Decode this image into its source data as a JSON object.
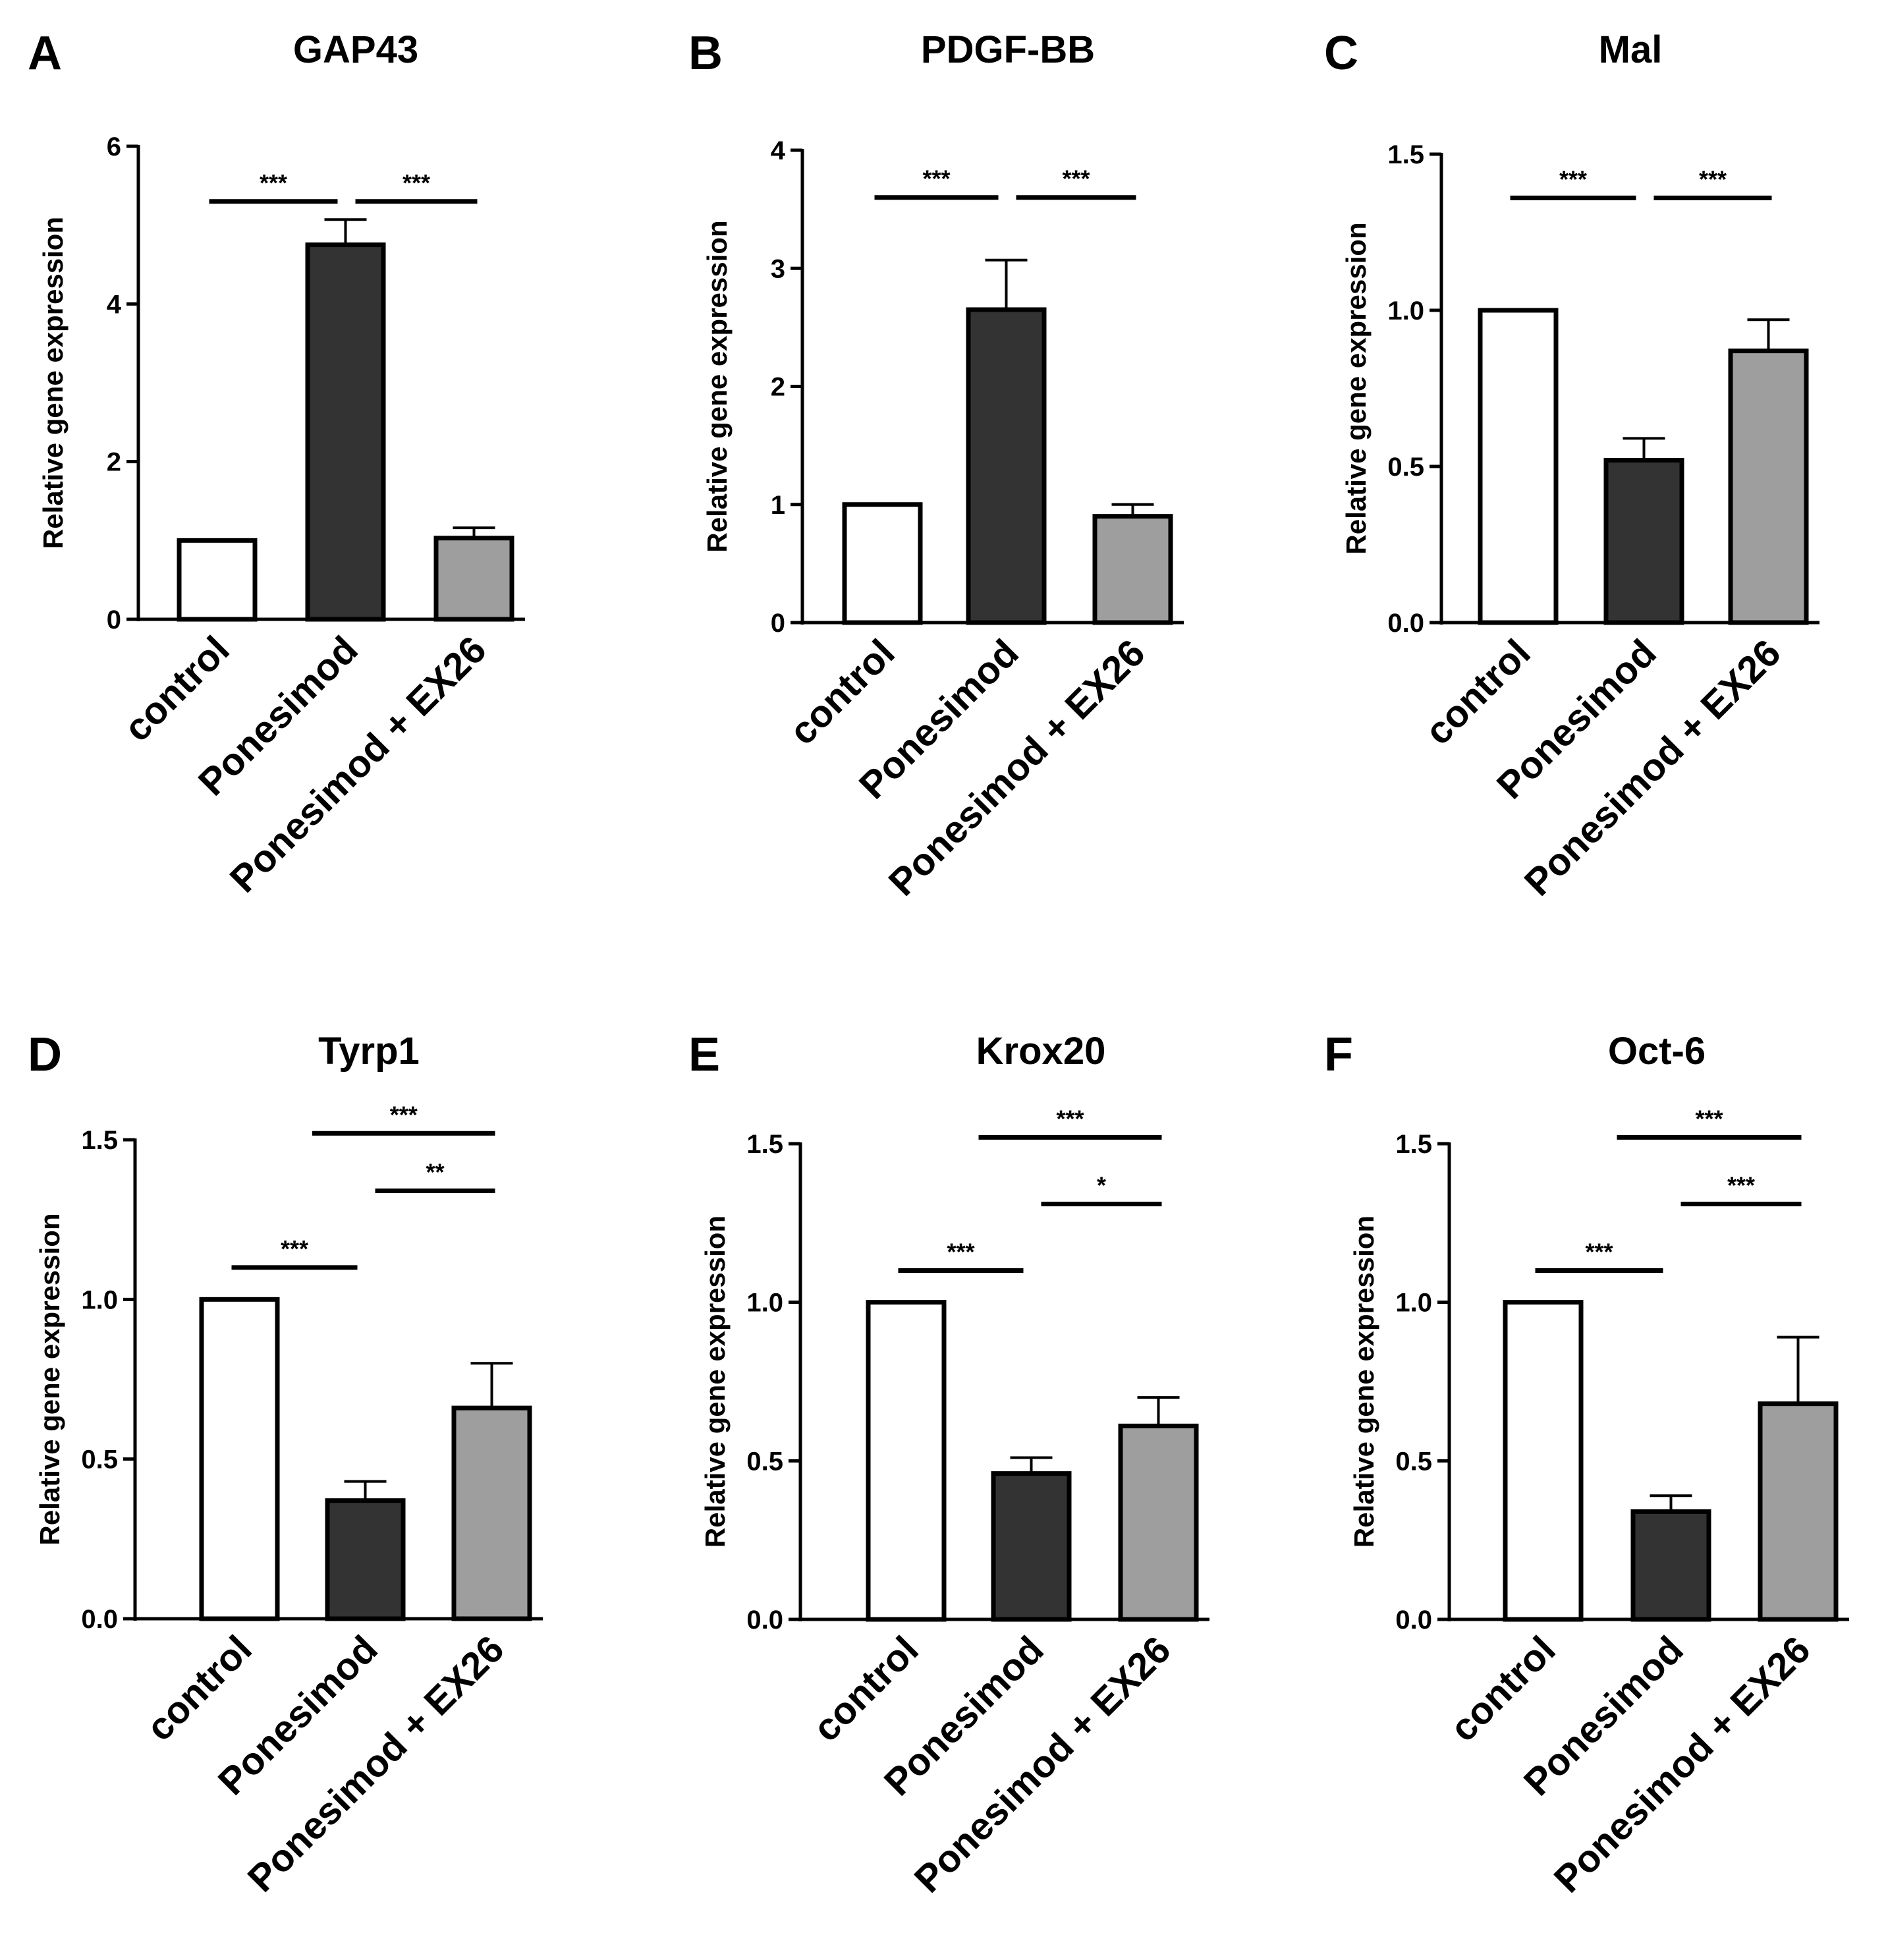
{
  "figure": {
    "ylabel": "Relative gene expression",
    "categories": [
      "control",
      "Ponesimod",
      "Ponesimod + EX26"
    ],
    "colors": {
      "bar_fills": [
        "#ffffff",
        "#333333",
        "#9e9e9e"
      ],
      "stroke": "#000000"
    }
  },
  "chart_data": [
    {
      "type": "bar",
      "panel": "A",
      "title": "GAP43",
      "categories": [
        "control",
        "Ponesimod",
        "Ponesimod + EX26"
      ],
      "values": [
        1.0,
        4.75,
        1.03
      ],
      "errors": [
        0.0,
        0.32,
        0.13
      ],
      "ylim": [
        0,
        6
      ],
      "yticks": [
        "0",
        "2",
        "4",
        "6"
      ],
      "ytick_values": [
        0,
        2,
        4,
        6
      ],
      "xlabel": "",
      "ylabel": "Relative gene expression",
      "significance": [
        {
          "from": 0,
          "to": 1,
          "label": "***",
          "level": 5.3
        },
        {
          "from": 1,
          "to": 2,
          "label": "***",
          "level": 5.3
        }
      ]
    },
    {
      "type": "bar",
      "panel": "B",
      "title": "PDGF-BB",
      "categories": [
        "control",
        "Ponesimod",
        "Ponesimod + EX26"
      ],
      "values": [
        1.0,
        2.65,
        0.9
      ],
      "errors": [
        0.0,
        0.42,
        0.1
      ],
      "ylim": [
        0,
        4
      ],
      "yticks": [
        "0",
        "1",
        "2",
        "3",
        "4"
      ],
      "ytick_values": [
        0,
        1,
        2,
        3,
        4
      ],
      "xlabel": "",
      "ylabel": "Relative gene expression",
      "significance": [
        {
          "from": 0,
          "to": 1,
          "label": "***",
          "level": 3.6
        },
        {
          "from": 1,
          "to": 2,
          "label": "***",
          "level": 3.6
        }
      ]
    },
    {
      "type": "bar",
      "panel": "C",
      "title": "Mal",
      "categories": [
        "control",
        "Ponesimod",
        "Ponesimod + EX26"
      ],
      "values": [
        1.0,
        0.52,
        0.87
      ],
      "errors": [
        0.0,
        0.07,
        0.1
      ],
      "ylim": [
        0,
        1.5
      ],
      "yticks": [
        "0.0",
        "0.5",
        "1.0",
        "1.5"
      ],
      "ytick_values": [
        0,
        0.5,
        1.0,
        1.5
      ],
      "xlabel": "",
      "ylabel": "Relative gene expression",
      "significance": [
        {
          "from": 0,
          "to": 1,
          "label": "***",
          "level": 1.36
        },
        {
          "from": 1,
          "to": 2,
          "label": "***",
          "level": 1.36
        }
      ]
    },
    {
      "type": "bar",
      "panel": "D",
      "title": "Tyrp1",
      "categories": [
        "control",
        "Ponesimod",
        "Ponesimod + EX26"
      ],
      "values": [
        1.0,
        0.37,
        0.66
      ],
      "errors": [
        0.0,
        0.06,
        0.14
      ],
      "ylim": [
        0,
        1.5
      ],
      "yticks": [
        "0.0",
        "0.5",
        "1.0",
        "1.5"
      ],
      "ytick_values": [
        0,
        0.5,
        1.0,
        1.5
      ],
      "xlabel": "",
      "ylabel": "Relative gene expression",
      "significance": [
        {
          "from": 0,
          "to": 1,
          "label": "***",
          "level": 1.1
        },
        {
          "from": 1,
          "to": 2,
          "label": "**",
          "level": 1.34
        },
        {
          "from": 0.5,
          "to": 2,
          "label": "***",
          "level": 1.52
        }
      ]
    },
    {
      "type": "bar",
      "panel": "E",
      "title": "Krox20",
      "categories": [
        "control",
        "Ponesimod",
        "Ponesimod + EX26"
      ],
      "values": [
        1.0,
        0.46,
        0.61
      ],
      "errors": [
        0.0,
        0.05,
        0.09
      ],
      "ylim": [
        0,
        1.5
      ],
      "yticks": [
        "0.0",
        "0.5",
        "1.0",
        "1.5"
      ],
      "ytick_values": [
        0,
        0.5,
        1.0,
        1.5
      ],
      "xlabel": "",
      "ylabel": "Relative gene expression",
      "significance": [
        {
          "from": 0,
          "to": 1,
          "label": "***",
          "level": 1.1
        },
        {
          "from": 1,
          "to": 2,
          "label": "*",
          "level": 1.31
        },
        {
          "from": 0.5,
          "to": 2,
          "label": "***",
          "level": 1.52
        }
      ]
    },
    {
      "type": "bar",
      "panel": "F",
      "title": "Oct-6",
      "categories": [
        "control",
        "Ponesimod",
        "Ponesimod + EX26"
      ],
      "values": [
        1.0,
        0.34,
        0.68
      ],
      "errors": [
        0.0,
        0.05,
        0.21
      ],
      "ylim": [
        0,
        1.5
      ],
      "yticks": [
        "0.0",
        "0.5",
        "1.0",
        "1.5"
      ],
      "ytick_values": [
        0,
        0.5,
        1.0,
        1.5
      ],
      "xlabel": "",
      "ylabel": "Relative gene expression",
      "significance": [
        {
          "from": 0,
          "to": 1,
          "label": "***",
          "level": 1.1
        },
        {
          "from": 1,
          "to": 2,
          "label": "***",
          "level": 1.31
        },
        {
          "from": 0.5,
          "to": 2,
          "label": "***",
          "level": 1.52
        }
      ]
    }
  ]
}
